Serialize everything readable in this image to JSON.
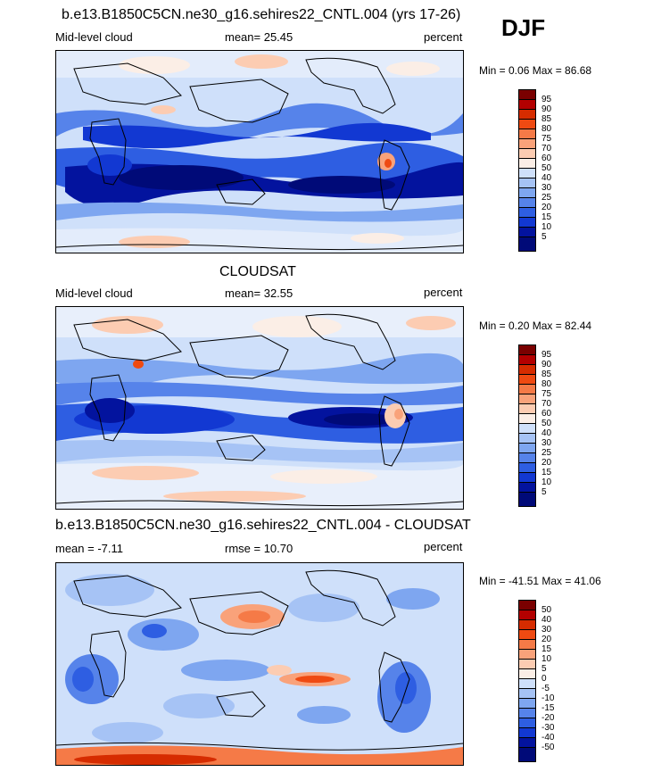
{
  "season": "DJF",
  "panels": [
    {
      "id": "model",
      "title": "b.e13.B1850C5CN.ne30_g16.sehires22_CNTL.004 (yrs 17-26)",
      "left_label": "Mid-level cloud",
      "center_label": "mean=  25.45",
      "right_label": "percent",
      "minmax": "Min =   0.06 Max =  86.68",
      "colorbar_labels": [
        "95",
        "90",
        "85",
        "80",
        "75",
        "70",
        "60",
        "50",
        "40",
        "30",
        "25",
        "20",
        "15",
        "10",
        "5"
      ],
      "colorbar_colors": [
        "#7a0000",
        "#b30000",
        "#d62c00",
        "#ef4a12",
        "#f57a47",
        "#f9a27a",
        "#fcccb2",
        "#fbeee6",
        "#cfe0fa",
        "#a6c3f5",
        "#7ea6f0",
        "#5683ea",
        "#2e5ee2",
        "#1238d2",
        "#03139e",
        "#000a78"
      ]
    },
    {
      "id": "obs",
      "title": "CLOUDSAT",
      "left_label": "Mid-level cloud",
      "center_label": "mean=  32.55",
      "right_label": "percent",
      "minmax": "Min =   0.20 Max =  82.44",
      "colorbar_labels": [
        "95",
        "90",
        "85",
        "80",
        "75",
        "70",
        "60",
        "50",
        "40",
        "30",
        "25",
        "20",
        "15",
        "10",
        "5"
      ],
      "colorbar_colors": [
        "#7a0000",
        "#b30000",
        "#d62c00",
        "#ef4a12",
        "#f57a47",
        "#f9a27a",
        "#fcccb2",
        "#fbeee6",
        "#cfe0fa",
        "#a6c3f5",
        "#7ea6f0",
        "#5683ea",
        "#2e5ee2",
        "#1238d2",
        "#03139e",
        "#000a78"
      ]
    },
    {
      "id": "diff",
      "title": "b.e13.B1850C5CN.ne30_g16.sehires22_CNTL.004 - CLOUDSAT",
      "left_label": "mean =  -7.11",
      "center_label": "rmse =  10.70",
      "right_label": "percent",
      "minmax": "Min = -41.51 Max =  41.06",
      "colorbar_labels": [
        "50",
        "40",
        "30",
        "20",
        "15",
        "10",
        "5",
        "0",
        "-5",
        "-10",
        "-15",
        "-20",
        "-30",
        "-40",
        "-50"
      ],
      "colorbar_colors": [
        "#7a0000",
        "#b30000",
        "#d62c00",
        "#ef4a12",
        "#f57a47",
        "#f9a27a",
        "#fcccb2",
        "#fbeee6",
        "#cfe0fa",
        "#a6c3f5",
        "#7ea6f0",
        "#5683ea",
        "#2e5ee2",
        "#1238d2",
        "#03139e",
        "#000a78"
      ]
    }
  ],
  "chart_data": [
    {
      "type": "heatmap",
      "title": "b.e13.B1850C5CN.ne30_g16.sehires22_CNTL.004 (yrs 17-26)",
      "variable": "Mid-level cloud",
      "units": "percent",
      "mean": 25.45,
      "min": 0.06,
      "max": 86.68,
      "contour_levels": [
        5,
        10,
        15,
        20,
        25,
        30,
        40,
        50,
        60,
        70,
        75,
        80,
        85,
        90,
        95
      ],
      "x": "longitude (global map)",
      "y": "latitude (global map)"
    },
    {
      "type": "heatmap",
      "title": "CLOUDSAT",
      "variable": "Mid-level cloud",
      "units": "percent",
      "mean": 32.55,
      "min": 0.2,
      "max": 82.44,
      "contour_levels": [
        5,
        10,
        15,
        20,
        25,
        30,
        40,
        50,
        60,
        70,
        75,
        80,
        85,
        90,
        95
      ]
    },
    {
      "type": "heatmap",
      "title": "b.e13.B1850C5CN.ne30_g16.sehires22_CNTL.004 - CLOUDSAT",
      "units": "percent",
      "mean": -7.11,
      "rmse": 10.7,
      "min": -41.51,
      "max": 41.06,
      "contour_levels": [
        -50,
        -40,
        -30,
        -20,
        -15,
        -10,
        -5,
        0,
        5,
        10,
        15,
        20,
        30,
        40,
        50
      ]
    }
  ]
}
